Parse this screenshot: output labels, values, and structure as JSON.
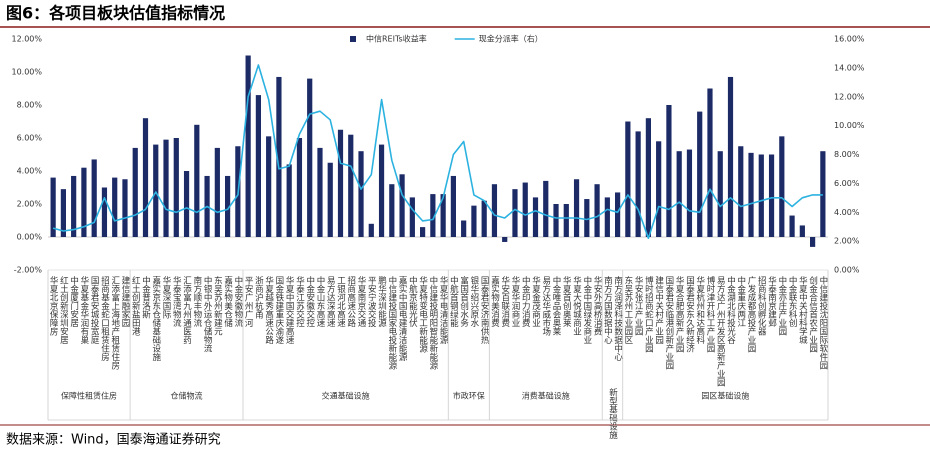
{
  "chart_data": {
    "type": "bar-line",
    "title": "图6：各项目板块估值指标情况",
    "source": "数据来源：Wind，国泰海通证券研究",
    "groups": [
      {
        "name": "保障性租赁住房",
        "categories": [
          "华夏北京保障房",
          "红土创新深圳安居",
          "中金厦门安居",
          "华夏基金华润有巢",
          "国泰君安城投宽庭",
          "招商基金蛇口租赁住房",
          "汇添富上海地产租赁住房",
          "建信建融家园"
        ]
      },
      {
        "name": "仓储物流",
        "categories": [
          "红土创新盐田港",
          "中金普洛斯",
          "嘉实京东仓储基础设施",
          "华夏深国际",
          "华泰宝湾物流",
          "汇添富九州通医药",
          "南方顺丰物流",
          "中银中外运仓储物流",
          "东吴苏州新建元",
          "嘉实物美仓储",
          "中金安徽物流"
        ]
      },
      {
        "name": "交通基础设施",
        "categories": [
          "平安广州广河",
          "浙商沪杭甬",
          "华夏越秀高速公路",
          "国金铁建重庆渝遂",
          "华夏中国交建高速",
          "华泰江苏交控",
          "中金安徽交控",
          "中金山东高速",
          "易方达深高速",
          "工银河北高速",
          "招商高速公路",
          "华夏南京交通",
          "平安宁波交投",
          "鹏华深圳能源",
          "中信建投国家电投新能源",
          "嘉实中国电建清洁能源",
          "中航京能光伏",
          "华夏特变电工新能源",
          "中信建投明阳智能新能源",
          "华夏华电清洁能源"
        ]
      },
      {
        "name": "市政环保",
        "categories": [
          "中航首钢绿能",
          "富国首创水务",
          "银华绍兴原水",
          "国泰君安济南供热"
        ]
      },
      {
        "name": "消费基础设施",
        "categories": [
          "嘉实物美消费",
          "华安百联消费",
          "华夏华润商业",
          "中金印力消费",
          "华夏金茂商业",
          "易方达华威市场",
          "中金唯品会奥莱",
          "华夏首创奥莱",
          "华夏大悦城商业",
          "中金中国绿发商业",
          "华安外高桥消费"
        ]
      },
      {
        "name": "新型基础设施",
        "categories": [
          "南方万国数据中心",
          "南方润泽科技数据中心"
        ]
      },
      {
        "name": "园区基础设施",
        "categories": [
          "东吴苏州工业园区",
          "华安张江产业园",
          "博时招商蛇口产业园",
          "建信中关村产业园",
          "国泰君安临港创新产业园",
          "华夏合肥高新产业园",
          "国泰君安东久新经济",
          "华夏杭州和达高科",
          "博时津开科工产业园",
          "易方达广州开发区高新产业园",
          "中金湖北科投光谷",
          "中金重庆两江",
          "广发成都高投产业园",
          "招商科创孵化器",
          "华泰南京建邺",
          "中金亦庄产业园",
          "中金联东科创",
          "华夏中关村科学城",
          "创金合信首农产业园",
          "中信建投沈阳国际软件园"
        ]
      }
    ],
    "series": [
      {
        "name": "中信REITs收益率",
        "type": "bar",
        "color": "#1c2a66",
        "values": [
          3.6,
          2.9,
          3.7,
          4.2,
          4.7,
          3.0,
          3.6,
          3.5,
          5.4,
          7.2,
          5.6,
          5.9,
          6.0,
          4.0,
          6.8,
          3.7,
          5.4,
          3.7,
          5.5,
          11.0,
          8.6,
          6.1,
          9.7,
          4.4,
          6.0,
          9.6,
          5.4,
          4.5,
          6.5,
          6.2,
          5.2,
          0.8,
          5.6,
          3.2,
          3.8,
          2.4,
          0.6,
          2.6,
          2.6,
          3.7,
          1.0,
          1.9,
          2.2,
          3.2,
          -0.3,
          2.9,
          3.3,
          2.4,
          3.4,
          2.0,
          2.0,
          3.5,
          2.3,
          3.2,
          2.4,
          2.7,
          7.0,
          6.4,
          7.2,
          5.8,
          8.0,
          5.2,
          5.3,
          7.6,
          9.0,
          5.2,
          9.7,
          5.5,
          5.1,
          5.0,
          5.0,
          6.1,
          1.3,
          0.7,
          -0.6,
          5.2
        ]
      },
      {
        "name": "现金分派率（右）",
        "type": "line",
        "axis": "y2",
        "color": "#2cb2e0",
        "values": [
          2.9,
          2.7,
          2.8,
          3.0,
          3.3,
          5.0,
          3.4,
          3.6,
          3.8,
          4.2,
          5.4,
          4.2,
          4.0,
          4.3,
          4.0,
          4.4,
          4.0,
          4.2,
          5.2,
          12.0,
          14.2,
          11.8,
          7.0,
          7.2,
          9.4,
          10.8,
          11.0,
          10.4,
          7.4,
          7.2,
          5.6,
          6.6,
          11.8,
          7.6,
          5.2,
          4.2,
          3.4,
          3.5,
          5.0,
          8.0,
          8.9,
          5.2,
          4.8,
          3.8,
          3.6,
          4.2,
          3.8,
          4.1,
          3.8,
          3.6,
          3.6,
          3.6,
          3.5,
          3.7,
          4.2,
          4.0,
          5.2,
          4.2,
          2.2,
          4.4,
          4.2,
          4.7,
          4.1,
          4.0,
          5.6,
          4.4,
          5.0,
          4.4,
          4.6,
          4.8,
          5.0,
          5.0,
          4.4,
          5.0,
          5.2,
          5.2
        ]
      }
    ],
    "ylim": [
      -2,
      12
    ],
    "yticks": [
      {
        "value": -2,
        "label": "-2.00%"
      },
      {
        "value": 0,
        "label": "0.00%"
      },
      {
        "value": 2,
        "label": "2.00%"
      },
      {
        "value": 4,
        "label": "4.00%"
      },
      {
        "value": 6,
        "label": "6.00%"
      },
      {
        "value": 8,
        "label": "8.00%"
      },
      {
        "value": 10,
        "label": "10.00%"
      },
      {
        "value": 12,
        "label": "12.00%"
      }
    ],
    "y2lim": [
      0,
      16
    ],
    "y2ticks": [
      {
        "value": 0,
        "label": "0.00%"
      },
      {
        "value": 2,
        "label": "2.00%"
      },
      {
        "value": 4,
        "label": "4.00%"
      },
      {
        "value": 6,
        "label": "6.00%"
      },
      {
        "value": 8,
        "label": "8.00%"
      },
      {
        "value": 10,
        "label": "10.00%"
      },
      {
        "value": 12,
        "label": "12.00%"
      },
      {
        "value": 14,
        "label": "14.00%"
      },
      {
        "value": 16,
        "label": "16.00%"
      }
    ],
    "legend": "top"
  }
}
